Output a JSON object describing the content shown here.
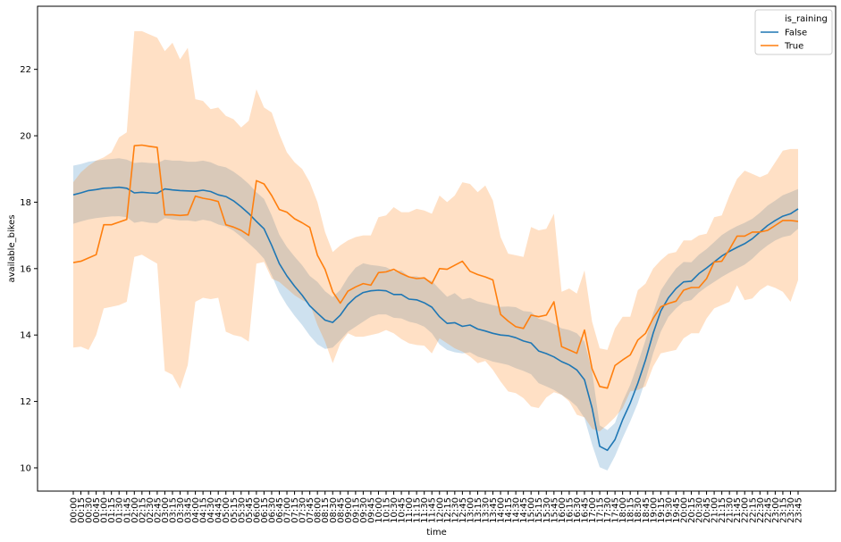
{
  "chart_data": {
    "type": "line",
    "xlabel": "time",
    "ylabel": "available_bikes",
    "ylim": [
      9.3,
      23.9
    ],
    "yticks": [
      10,
      12,
      14,
      16,
      18,
      20,
      22
    ],
    "x": [
      "00:00",
      "00:15",
      "00:30",
      "00:45",
      "01:00",
      "01:15",
      "01:30",
      "01:45",
      "02:00",
      "02:15",
      "02:30",
      "02:45",
      "03:00",
      "03:15",
      "03:30",
      "03:45",
      "04:00",
      "04:15",
      "04:30",
      "04:45",
      "05:00",
      "05:15",
      "05:30",
      "05:45",
      "06:00",
      "06:15",
      "06:30",
      "06:45",
      "07:00",
      "07:15",
      "07:30",
      "07:45",
      "08:00",
      "08:15",
      "08:30",
      "08:45",
      "09:00",
      "09:15",
      "09:30",
      "09:45",
      "10:00",
      "10:15",
      "10:30",
      "10:45",
      "11:00",
      "11:15",
      "11:30",
      "11:45",
      "12:00",
      "12:15",
      "12:30",
      "12:45",
      "13:00",
      "13:15",
      "13:30",
      "13:45",
      "14:00",
      "14:15",
      "14:30",
      "14:45",
      "15:00",
      "15:15",
      "15:30",
      "15:45",
      "16:00",
      "16:15",
      "16:30",
      "16:45",
      "17:00",
      "17:15",
      "17:30",
      "17:45",
      "18:00",
      "18:15",
      "18:30",
      "18:45",
      "19:00",
      "19:15",
      "19:30",
      "19:45",
      "20:00",
      "20:15",
      "20:30",
      "20:45",
      "21:00",
      "21:15",
      "21:30",
      "21:45",
      "22:00",
      "22:15",
      "22:30",
      "22:45",
      "23:00",
      "23:15",
      "23:30",
      "23:45"
    ],
    "legend": {
      "title": "is_raining",
      "placement": "upper right"
    },
    "series": [
      {
        "name": "False",
        "color": "#1f77b4",
        "band_color": "#1f77b4",
        "values": [
          18.22,
          18.28,
          18.35,
          18.38,
          18.42,
          18.43,
          18.45,
          18.42,
          18.28,
          18.3,
          18.28,
          18.27,
          18.4,
          18.37,
          18.35,
          18.34,
          18.33,
          18.36,
          18.32,
          18.22,
          18.17,
          18.04,
          17.86,
          17.66,
          17.42,
          17.2,
          16.7,
          16.15,
          15.78,
          15.47,
          15.2,
          14.88,
          14.66,
          14.45,
          14.38,
          14.6,
          14.92,
          15.14,
          15.28,
          15.33,
          15.35,
          15.33,
          15.22,
          15.22,
          15.08,
          15.06,
          14.97,
          14.84,
          14.55,
          14.35,
          14.37,
          14.26,
          14.3,
          14.18,
          14.12,
          14.05,
          14.0,
          13.98,
          13.92,
          13.82,
          13.76,
          13.52,
          13.44,
          13.34,
          13.2,
          13.1,
          12.95,
          12.65,
          11.8,
          10.65,
          10.53,
          10.85,
          11.45,
          11.95,
          12.55,
          13.25,
          14.05,
          14.72,
          15.12,
          15.4,
          15.6,
          15.62,
          15.85,
          16.02,
          16.2,
          16.38,
          16.52,
          16.64,
          16.75,
          16.9,
          17.1,
          17.3,
          17.45,
          17.58,
          17.65,
          17.8
        ],
        "lower": [
          17.35,
          17.42,
          17.48,
          17.52,
          17.55,
          17.57,
          17.58,
          17.55,
          17.38,
          17.42,
          17.38,
          17.37,
          17.52,
          17.48,
          17.45,
          17.45,
          17.42,
          17.47,
          17.43,
          17.33,
          17.27,
          17.14,
          16.96,
          16.76,
          16.55,
          16.3,
          15.8,
          15.28,
          14.9,
          14.58,
          14.3,
          13.98,
          13.72,
          13.58,
          13.62,
          13.85,
          14.1,
          14.25,
          14.4,
          14.55,
          14.62,
          14.62,
          14.52,
          14.5,
          14.4,
          14.35,
          14.25,
          14.05,
          13.72,
          13.55,
          13.48,
          13.45,
          13.48,
          13.35,
          13.28,
          13.2,
          13.15,
          13.1,
          13.0,
          12.92,
          12.82,
          12.55,
          12.45,
          12.35,
          12.2,
          12.05,
          11.85,
          11.5,
          10.7,
          10.02,
          9.92,
          10.35,
          10.9,
          11.4,
          11.95,
          12.65,
          13.45,
          14.1,
          14.55,
          14.8,
          15.0,
          15.05,
          15.28,
          15.45,
          15.6,
          15.75,
          15.88,
          16.0,
          16.12,
          16.3,
          16.52,
          16.7,
          16.85,
          16.95,
          17.0,
          17.2
        ],
        "upper": [
          19.1,
          19.15,
          19.22,
          19.25,
          19.28,
          19.3,
          19.32,
          19.28,
          19.18,
          19.2,
          19.18,
          19.17,
          19.28,
          19.25,
          19.25,
          19.22,
          19.22,
          19.25,
          19.2,
          19.1,
          19.05,
          18.92,
          18.75,
          18.55,
          18.3,
          18.1,
          17.6,
          17.02,
          16.65,
          16.36,
          16.1,
          15.78,
          15.6,
          15.32,
          15.14,
          15.36,
          15.74,
          16.03,
          16.16,
          16.11,
          16.08,
          16.04,
          15.92,
          15.94,
          15.76,
          15.77,
          15.69,
          15.63,
          15.38,
          15.15,
          15.26,
          15.07,
          15.12,
          15.01,
          14.96,
          14.9,
          14.85,
          14.86,
          14.84,
          14.72,
          14.7,
          14.49,
          14.43,
          14.33,
          14.2,
          14.15,
          14.05,
          13.8,
          12.9,
          11.28,
          11.14,
          11.35,
          12.0,
          12.5,
          13.15,
          13.85,
          14.65,
          15.34,
          15.69,
          16.0,
          16.2,
          16.19,
          16.42,
          16.59,
          16.8,
          17.01,
          17.16,
          17.28,
          17.38,
          17.5,
          17.68,
          17.9,
          18.05,
          18.21,
          18.3,
          18.4
        ]
      },
      {
        "name": "True",
        "color": "#ff7f0e",
        "band_color": "#ff7f0e",
        "values": [
          16.18,
          16.22,
          16.32,
          16.42,
          17.32,
          17.32,
          17.4,
          17.48,
          19.7,
          19.72,
          19.68,
          19.65,
          17.62,
          17.62,
          17.6,
          17.62,
          18.18,
          18.12,
          18.08,
          18.02,
          17.32,
          17.25,
          17.15,
          17.0,
          18.65,
          18.55,
          18.2,
          17.78,
          17.7,
          17.5,
          17.38,
          17.24,
          16.4,
          15.98,
          15.3,
          14.96,
          15.32,
          15.45,
          15.55,
          15.5,
          15.88,
          15.9,
          15.98,
          15.85,
          15.75,
          15.7,
          15.72,
          15.55,
          16.0,
          15.98,
          16.1,
          16.22,
          15.92,
          15.82,
          15.75,
          15.66,
          14.62,
          14.42,
          14.25,
          14.2,
          14.6,
          14.55,
          14.6,
          15.0,
          13.65,
          13.55,
          13.45,
          14.15,
          12.98,
          12.45,
          12.4,
          13.08,
          13.25,
          13.4,
          13.85,
          14.05,
          14.5,
          14.85,
          14.95,
          15.02,
          15.35,
          15.43,
          15.43,
          15.7,
          16.2,
          16.22,
          16.58,
          16.98,
          16.98,
          17.1,
          17.1,
          17.15,
          17.3,
          17.45,
          17.45,
          17.42
        ],
        "lower": [
          13.62,
          13.65,
          13.55,
          14.0,
          14.8,
          14.85,
          14.9,
          15.0,
          16.35,
          16.42,
          16.28,
          16.15,
          12.92,
          12.8,
          12.38,
          13.1,
          15.0,
          15.12,
          15.08,
          15.12,
          14.1,
          14.0,
          13.95,
          13.8,
          16.15,
          16.2,
          15.7,
          15.6,
          15.4,
          15.2,
          15.05,
          14.95,
          14.3,
          13.8,
          13.15,
          13.75,
          14.05,
          13.95,
          13.95,
          14.0,
          14.05,
          14.15,
          14.05,
          13.88,
          13.75,
          13.7,
          13.68,
          13.45,
          13.9,
          13.75,
          13.6,
          13.5,
          13.35,
          13.15,
          13.22,
          12.95,
          12.6,
          12.3,
          12.25,
          12.1,
          11.85,
          11.8,
          12.12,
          12.28,
          12.2,
          12.0,
          11.6,
          11.52,
          11.18,
          11.1,
          11.3,
          11.52,
          11.8,
          12.3,
          12.35,
          12.45,
          13.05,
          13.45,
          13.5,
          13.55,
          13.9,
          14.05,
          14.05,
          14.5,
          14.8,
          14.9,
          15.0,
          15.5,
          15.05,
          15.1,
          15.35,
          15.5,
          15.42,
          15.3,
          15.0,
          15.65
        ],
        "upper": [
          18.6,
          18.9,
          19.1,
          19.25,
          19.35,
          19.5,
          19.95,
          20.1,
          23.15,
          23.15,
          23.05,
          22.95,
          22.55,
          22.8,
          22.3,
          22.65,
          21.1,
          21.05,
          20.8,
          20.85,
          20.6,
          20.5,
          20.25,
          20.45,
          21.4,
          20.85,
          20.7,
          20.05,
          19.5,
          19.2,
          19.0,
          18.6,
          18.0,
          17.1,
          16.5,
          16.7,
          16.85,
          16.95,
          17.0,
          17.0,
          17.55,
          17.6,
          17.85,
          17.7,
          17.7,
          17.8,
          17.75,
          17.65,
          18.2,
          18.0,
          18.2,
          18.6,
          18.55,
          18.3,
          18.5,
          18.05,
          16.95,
          16.45,
          16.4,
          16.35,
          17.25,
          17.15,
          17.2,
          17.65,
          15.3,
          15.4,
          15.25,
          15.95,
          14.4,
          13.6,
          13.55,
          14.2,
          14.55,
          14.55,
          15.35,
          15.55,
          16.0,
          16.25,
          16.45,
          16.5,
          16.85,
          16.85,
          17.0,
          17.05,
          17.55,
          17.6,
          18.2,
          18.7,
          18.95,
          18.85,
          18.75,
          18.85,
          19.2,
          19.55,
          19.6,
          19.6
        ]
      }
    ]
  }
}
